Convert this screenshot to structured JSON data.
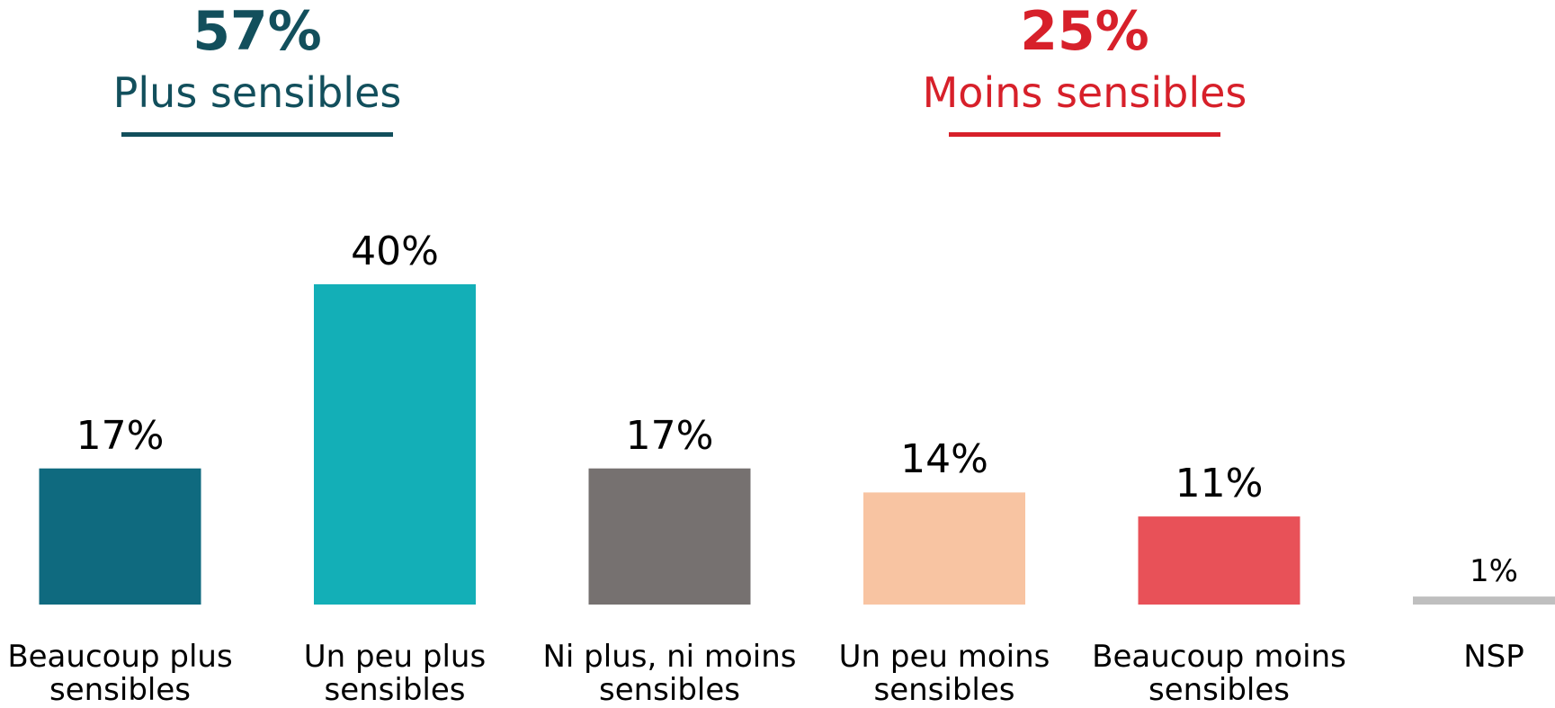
{
  "chart_data": {
    "type": "bar",
    "groups": [
      {
        "value_label": "57%",
        "label": "Plus sensibles",
        "color": "#124f5c"
      },
      {
        "value_label": "25%",
        "label": "Moins sensibles",
        "color": "#d7202a"
      }
    ],
    "categories": [
      "Beaucoup plus sensibles",
      "Un peu plus sensibles",
      "Ni plus, ni moins sensibles",
      "Un peu moins sensibles",
      "Beaucoup moins sensibles",
      "NSP"
    ],
    "values": [
      17,
      40,
      17,
      14,
      11,
      1
    ],
    "value_labels": [
      "17%",
      "40%",
      "17%",
      "14%",
      "11%",
      "1%"
    ],
    "colors": [
      "#0f6a7f",
      "#13afb7",
      "#767170",
      "#f8c4a2",
      "#e85158",
      "#bfbfbf"
    ],
    "ylim": [
      0,
      40
    ]
  }
}
